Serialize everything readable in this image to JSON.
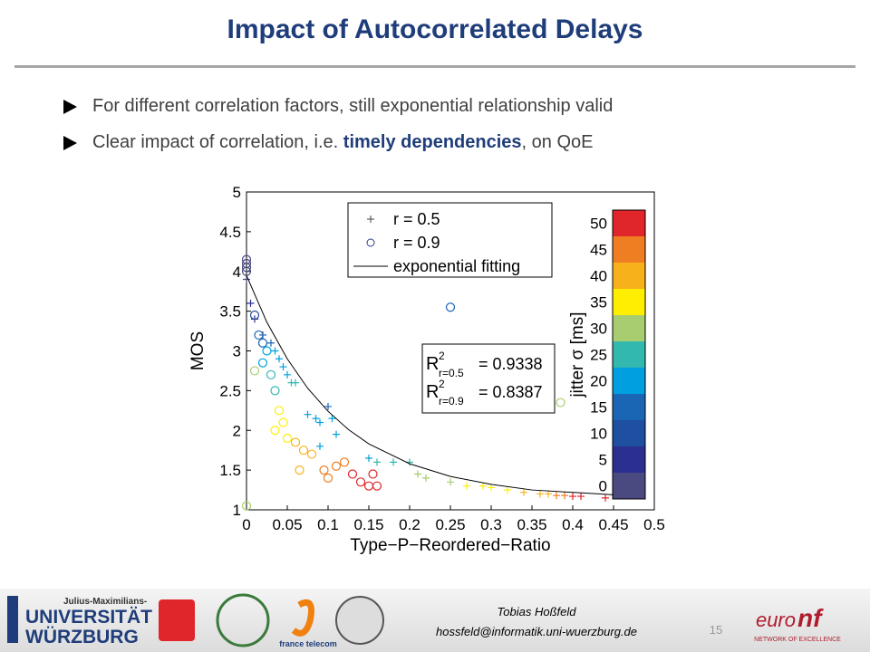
{
  "slide": {
    "title": "Impact of Autocorrelated Delays",
    "bullets": [
      {
        "parts": [
          "For different correlation factors, still exponential relationship valid"
        ]
      },
      {
        "parts": [
          "Clear impact of correlation, i.e. ",
          "timely dependencies",
          ", on QoE"
        ]
      }
    ],
    "footer": {
      "author": "Tobias Hoßfeld",
      "email": "hossfeld@informatik.uni-wuerzburg.de",
      "page": "15",
      "logos": [
        "Julius-Maximilians-",
        "UNIVERSITÄT",
        "WÜRZBURG",
        "france telecom",
        "euro",
        "nf",
        "NETWORK OF EXCELLENCE"
      ]
    }
  },
  "chart_data": {
    "type": "scatter",
    "x_label": "Type−P−Reordered−Ratio",
    "y_label": "MOS",
    "xlim": [
      0,
      0.5
    ],
    "ylim": [
      1,
      5
    ],
    "xticks": [
      0,
      0.05,
      0.1,
      0.15,
      0.2,
      0.25,
      0.3,
      0.35,
      0.4,
      0.45,
      0.5
    ],
    "yticks": [
      1,
      1.5,
      2,
      2.5,
      3,
      3.5,
      4,
      4.5,
      5
    ],
    "series": [
      {
        "name": "r = 0.5",
        "marker": "+",
        "legend_color": "#404040",
        "x": [
          0,
          0.005,
          0.01,
          0.02,
          0.03,
          0.035,
          0.04,
          0.045,
          0.05,
          0.055,
          0.06,
          0.075,
          0.085,
          0.09,
          0.1,
          0.105,
          0.11,
          0.09,
          0.15,
          0.16,
          0.18,
          0.2,
          0.21,
          0.22,
          0.25,
          0.27,
          0.29,
          0.3,
          0.32,
          0.34,
          0.36,
          0.37,
          0.38,
          0.39,
          0.4,
          0.41,
          0.44
        ],
        "values": [
          3.9,
          3.6,
          3.4,
          3.2,
          3.1,
          3.0,
          2.9,
          2.8,
          2.7,
          2.6,
          2.6,
          2.2,
          2.15,
          2.1,
          2.3,
          2.15,
          1.95,
          1.8,
          1.65,
          1.6,
          1.6,
          1.6,
          1.45,
          1.4,
          1.35,
          1.3,
          1.3,
          1.28,
          1.25,
          1.22,
          1.2,
          1.2,
          1.18,
          1.18,
          1.17,
          1.17,
          1.15
        ],
        "jitter": [
          0,
          5,
          5,
          10,
          15,
          20,
          20,
          20,
          20,
          25,
          25,
          20,
          20,
          20,
          15,
          20,
          20,
          20,
          20,
          25,
          25,
          25,
          30,
          30,
          30,
          35,
          35,
          35,
          35,
          40,
          40,
          40,
          45,
          45,
          50,
          50,
          50
        ]
      },
      {
        "name": "r = 0.9",
        "marker": "o",
        "legend_color": "#2b3a8f",
        "x": [
          0,
          0,
          0,
          0,
          0.01,
          0.015,
          0.02,
          0.025,
          0.02,
          0.03,
          0.035,
          0,
          0.01,
          0.04,
          0.045,
          0.035,
          0.05,
          0.06,
          0.07,
          0.065,
          0.08,
          0.095,
          0.1,
          0.11,
          0.12,
          0.13,
          0.14,
          0.15,
          0.16,
          0.25,
          0.385,
          0.155
        ],
        "values": [
          4.15,
          4.1,
          4.05,
          4.0,
          3.45,
          3.2,
          3.1,
          3.0,
          2.85,
          2.7,
          2.5,
          1.05,
          2.75,
          2.25,
          2.1,
          2.0,
          1.9,
          1.85,
          1.75,
          1.5,
          1.7,
          1.5,
          1.4,
          1.55,
          1.6,
          1.45,
          1.35,
          1.3,
          1.3,
          3.55,
          2.35,
          1.45
        ],
        "jitter": [
          0,
          0,
          0,
          0,
          10,
          15,
          15,
          20,
          20,
          25,
          25,
          30,
          30,
          35,
          35,
          35,
          35,
          40,
          40,
          40,
          40,
          45,
          45,
          45,
          45,
          50,
          50,
          50,
          50,
          15,
          30,
          50
        ]
      },
      {
        "name": "exponential fitting",
        "marker": "line",
        "color": "#000000",
        "x": [
          0,
          0.025,
          0.05,
          0.075,
          0.1,
          0.125,
          0.15,
          0.2,
          0.25,
          0.3,
          0.35,
          0.4,
          0.45
        ],
        "values": [
          3.95,
          3.36,
          2.9,
          2.53,
          2.24,
          2.01,
          1.83,
          1.58,
          1.42,
          1.32,
          1.25,
          1.22,
          1.19
        ]
      }
    ],
    "colorbar": {
      "label": "jitter σ [ms]",
      "ticks": [
        0,
        5,
        10,
        15,
        20,
        25,
        30,
        35,
        40,
        45,
        50
      ],
      "colors": [
        "#4a4a80",
        "#2b2f8f",
        "#1f4fa0",
        "#1a66b5",
        "#00a0e0",
        "#33b8b0",
        "#a8cc70",
        "#ffee00",
        "#f7b21b",
        "#ef7d22",
        "#e0262a"
      ]
    },
    "annotation": {
      "symbol": "R",
      "power": "2",
      "rows": [
        {
          "sub": "r=0.5",
          "text": "= 0.9338"
        },
        {
          "sub": "r=0.9",
          "text": "= 0.8387"
        }
      ]
    }
  }
}
